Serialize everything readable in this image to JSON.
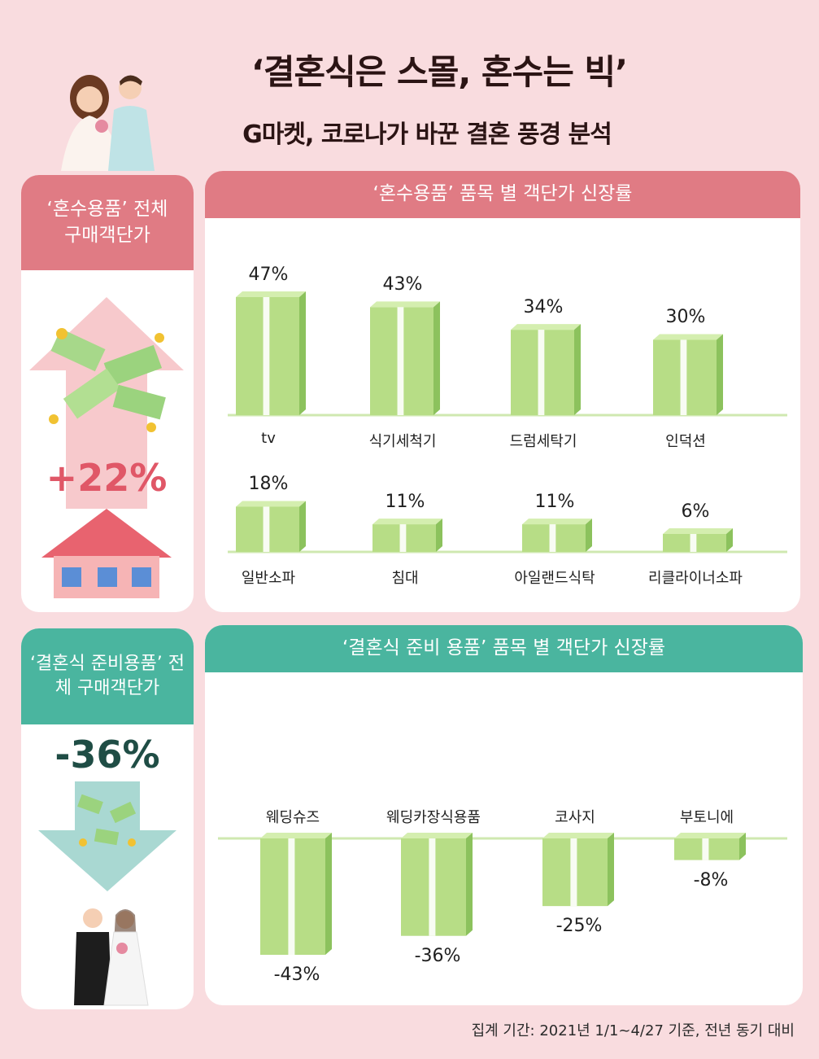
{
  "title": "‘결혼식은 스몰, 혼수는 빅’",
  "subtitle": "G마켓, 코로나가 바꾼 결혼 풍경 분석",
  "left_top": {
    "title": "‘혼수용품’ 전체 구매객단가",
    "value": "+22%"
  },
  "left_bottom": {
    "title": "‘결혼식 준비용품’ 전체 구매객단가",
    "value": "-36%"
  },
  "colors": {
    "pink_header": "#e07b84",
    "teal_header": "#4ab59f",
    "bar_green": "#b7dd86",
    "up_value": "#e05767",
    "down_value": "#1f4d45"
  },
  "chart_data": [
    {
      "type": "bar",
      "title": "‘혼수용품’ 품목 별 객단가 신장률",
      "categories": [
        "tv",
        "식기세척기",
        "드럼세탁기",
        "인덕션",
        "일반소파",
        "침대",
        "아일랜드식탁",
        "리클라이너소파"
      ],
      "values": [
        47,
        43,
        34,
        30,
        18,
        11,
        11,
        6
      ],
      "labels": [
        "47%",
        "43%",
        "34%",
        "30%",
        "18%",
        "11%",
        "11%",
        "6%"
      ],
      "unit": "%"
    },
    {
      "type": "bar",
      "title": "‘결혼식 준비 용품’ 품목 별 객단가 신장률",
      "categories": [
        "웨딩슈즈",
        "웨딩카장식용품",
        "코사지",
        "부토니에"
      ],
      "values": [
        -43,
        -36,
        -25,
        -8
      ],
      "labels": [
        "-43%",
        "-36%",
        "-25%",
        "-8%"
      ],
      "unit": "%"
    }
  ],
  "footer": "집계 기간: 2021년 1/1~4/27 기준, 전년 동기 대비"
}
